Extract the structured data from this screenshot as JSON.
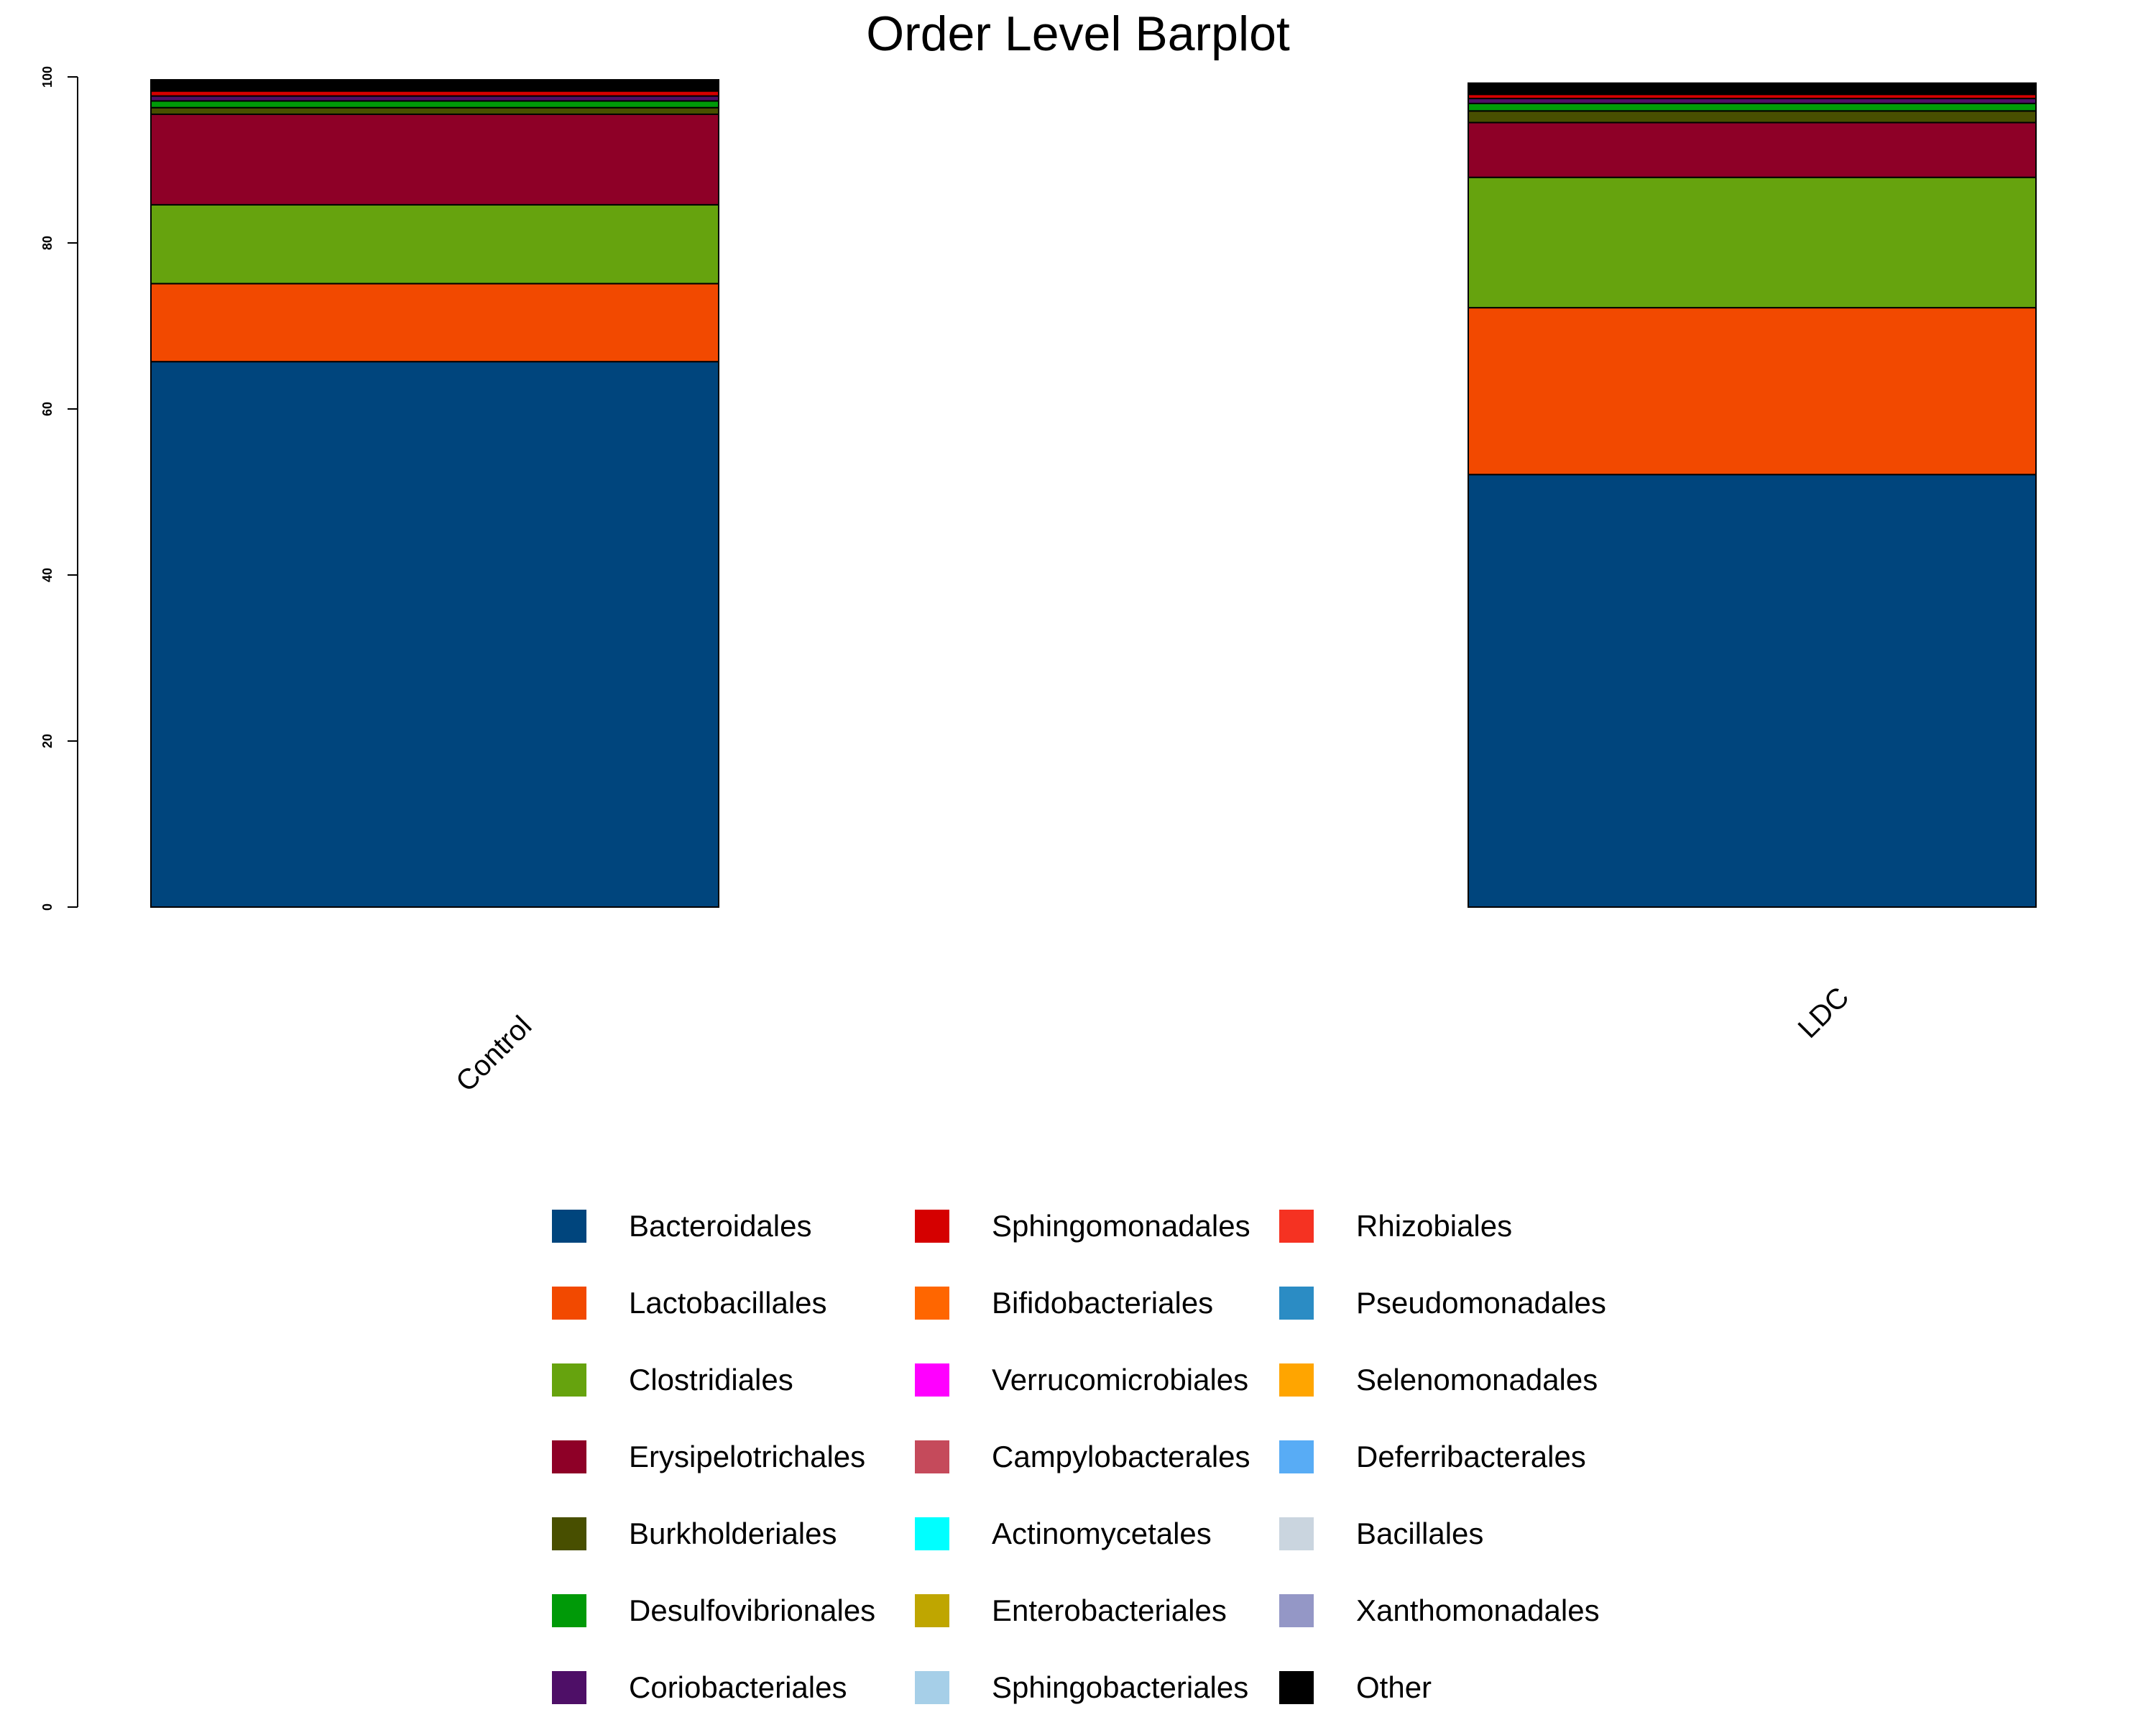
{
  "chart_data": {
    "type": "bar",
    "stacked": true,
    "title": "Order Level Barplot",
    "xlabel": "",
    "ylabel": "",
    "ylim": [
      0,
      100
    ],
    "yticks": [
      "0",
      "20",
      "40",
      "60",
      "80",
      "100"
    ],
    "categories": [
      "Control",
      "LDC"
    ],
    "legend_position": "bottom",
    "legend_columns": 3,
    "series": [
      {
        "name": "Bacteroidales",
        "color": "#00457D",
        "values": [
          65.7,
          52.1
        ]
      },
      {
        "name": "Lactobacillales",
        "color": "#F24900",
        "values": [
          9.4,
          20.1
        ]
      },
      {
        "name": "Clostridiales",
        "color": "#66A30E",
        "values": [
          9.5,
          15.7
        ]
      },
      {
        "name": "Erysipelotrichales",
        "color": "#8E0027",
        "values": [
          10.9,
          6.6
        ]
      },
      {
        "name": "Burkholderiales",
        "color": "#484F00",
        "values": [
          0.8,
          1.4
        ]
      },
      {
        "name": "Desulfovibrionales",
        "color": "#009A08",
        "values": [
          0.8,
          0.9
        ]
      },
      {
        "name": "Coriobacteriales",
        "color": "#4E0F67",
        "values": [
          0.6,
          0.6
        ]
      },
      {
        "name": "Sphingomonadales",
        "color": "#D50000",
        "values": [
          0.6,
          0.5
        ]
      },
      {
        "name": "Bifidobacteriales",
        "color": "#FF6600",
        "values": [
          0.1,
          0.1
        ]
      },
      {
        "name": "Verrucomicrobiales",
        "color": "#FF00FF",
        "values": [
          0.05,
          0.05
        ]
      },
      {
        "name": "Campylobacterales",
        "color": "#C54A5B",
        "values": [
          0.05,
          0.05
        ]
      },
      {
        "name": "Actinomycetales",
        "color": "#00FFFF",
        "values": [
          0.05,
          0.05
        ]
      },
      {
        "name": "Enterobacteriales",
        "color": "#BFA600",
        "values": [
          0.05,
          0.05
        ]
      },
      {
        "name": "Sphingobacteriales",
        "color": "#A6CFE8",
        "values": [
          0.05,
          0.05
        ]
      },
      {
        "name": "Rhizobiales",
        "color": "#F53222",
        "values": [
          0.05,
          0.05
        ]
      },
      {
        "name": "Pseudomonadales",
        "color": "#2B8CC4",
        "values": [
          0.05,
          0.05
        ]
      },
      {
        "name": "Selenomonadales",
        "color": "#FFA500",
        "values": [
          0.05,
          0.05
        ]
      },
      {
        "name": "Deferribacterales",
        "color": "#58ACF5",
        "values": [
          0.05,
          0.05
        ]
      },
      {
        "name": "Bacillales",
        "color": "#CAD5DF",
        "values": [
          0.05,
          0.05
        ]
      },
      {
        "name": "Xanthomonadales",
        "color": "#9497C6",
        "values": [
          0.05,
          0.05
        ]
      },
      {
        "name": "Other",
        "color": "#000000",
        "values": [
          0.7,
          0.7
        ]
      }
    ]
  }
}
